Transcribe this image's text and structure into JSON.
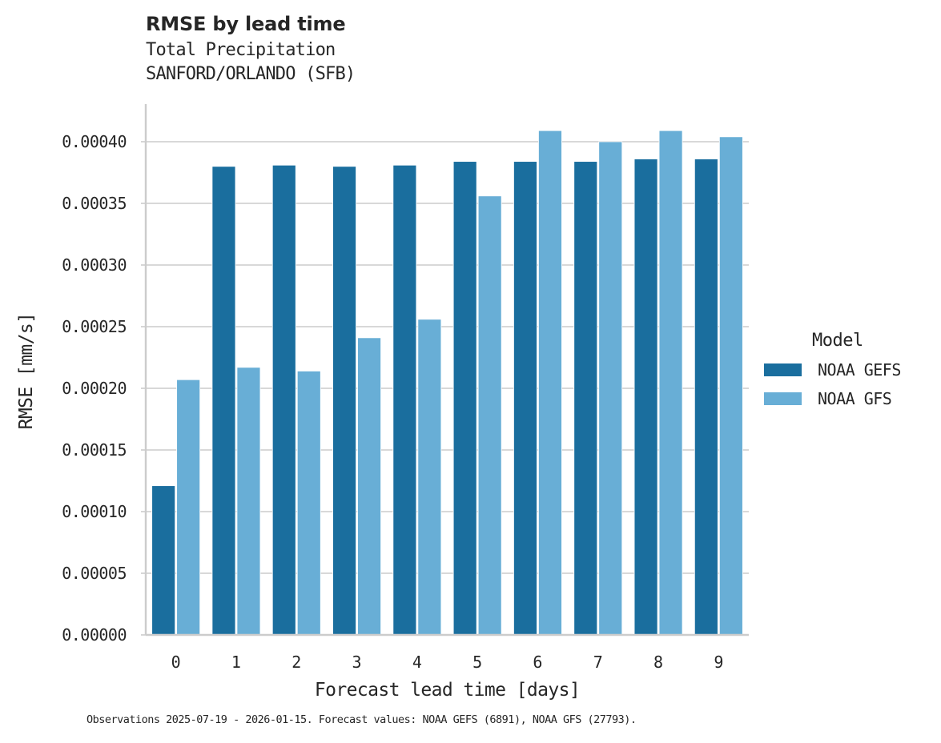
{
  "header": {
    "title": "RMSE by lead time",
    "subtitle_line1": "Total Precipitation",
    "subtitle_line2": "SANFORD/ORLANDO (SFB)"
  },
  "legend": {
    "title": "Model",
    "items": [
      {
        "label": "NOAA GEFS",
        "color": "#1a6e9e"
      },
      {
        "label": "NOAA GFS",
        "color": "#68aed6"
      }
    ]
  },
  "footnote": "Observations 2025-07-19 - 2026-01-15. Forecast values: NOAA GEFS (6891), NOAA GFS (27793).",
  "chart_data": {
    "type": "bar",
    "title": "RMSE by lead time",
    "subtitle": "Total Precipitation — SANFORD/ORLANDO (SFB)",
    "xlabel": "Forecast lead time [days]",
    "ylabel": "RMSE [mm/s]",
    "categories": [
      "0",
      "1",
      "2",
      "3",
      "4",
      "5",
      "6",
      "7",
      "8",
      "9"
    ],
    "series": [
      {
        "name": "NOAA GEFS",
        "color": "#1a6e9e",
        "values": [
          0.000121,
          0.00038,
          0.000381,
          0.00038,
          0.000381,
          0.000384,
          0.000384,
          0.000384,
          0.000386,
          0.000386
        ]
      },
      {
        "name": "NOAA GFS",
        "color": "#68aed6",
        "values": [
          0.000207,
          0.000217,
          0.000214,
          0.000241,
          0.000256,
          0.000356,
          0.000409,
          0.0004,
          0.000409,
          0.000404
        ]
      }
    ],
    "ylim": [
      0,
      0.00043
    ],
    "yticks": [
      0.0,
      5e-05,
      0.0001,
      0.00015,
      0.0002,
      0.00025,
      0.0003,
      0.00035,
      0.0004
    ],
    "ytick_labels": [
      "0.00000",
      "0.00005",
      "0.00010",
      "0.00015",
      "0.00020",
      "0.00025",
      "0.00030",
      "0.00035",
      "0.00040"
    ],
    "grid": "y",
    "legend_position": "right"
  }
}
